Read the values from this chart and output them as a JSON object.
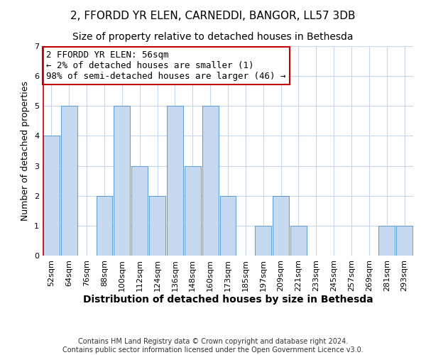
{
  "title": "2, FFORDD YR ELEN, CARNEDDI, BANGOR, LL57 3DB",
  "subtitle": "Size of property relative to detached houses in Bethesda",
  "xlabel": "Distribution of detached houses by size in Bethesda",
  "ylabel": "Number of detached properties",
  "categories": [
    "52sqm",
    "64sqm",
    "76sqm",
    "88sqm",
    "100sqm",
    "112sqm",
    "124sqm",
    "136sqm",
    "148sqm",
    "160sqm",
    "173sqm",
    "185sqm",
    "197sqm",
    "209sqm",
    "221sqm",
    "233sqm",
    "245sqm",
    "257sqm",
    "269sqm",
    "281sqm",
    "293sqm"
  ],
  "values": [
    4,
    5,
    0,
    2,
    5,
    3,
    2,
    5,
    3,
    5,
    2,
    0,
    1,
    2,
    1,
    0,
    0,
    0,
    0,
    1,
    1
  ],
  "bar_color": "#c7d9f0",
  "bar_edgecolor": "#5b9bd5",
  "highlight_color": "#c00000",
  "annotation_lines": [
    "2 FFORDD YR ELEN: 56sqm",
    "← 2% of detached houses are smaller (1)",
    "98% of semi-detached houses are larger (46) →"
  ],
  "annotation_box_edgecolor": "#c00000",
  "ylim": [
    0,
    7
  ],
  "yticks": [
    0,
    1,
    2,
    3,
    4,
    5,
    6,
    7
  ],
  "footer_lines": [
    "Contains HM Land Registry data © Crown copyright and database right 2024.",
    "Contains public sector information licensed under the Open Government Licence v3.0."
  ],
  "title_fontsize": 11,
  "subtitle_fontsize": 10,
  "xlabel_fontsize": 10,
  "ylabel_fontsize": 9,
  "tick_fontsize": 8,
  "annotation_fontsize": 9,
  "footer_fontsize": 7,
  "background_color": "#ffffff",
  "grid_color": "#c8d8ec"
}
